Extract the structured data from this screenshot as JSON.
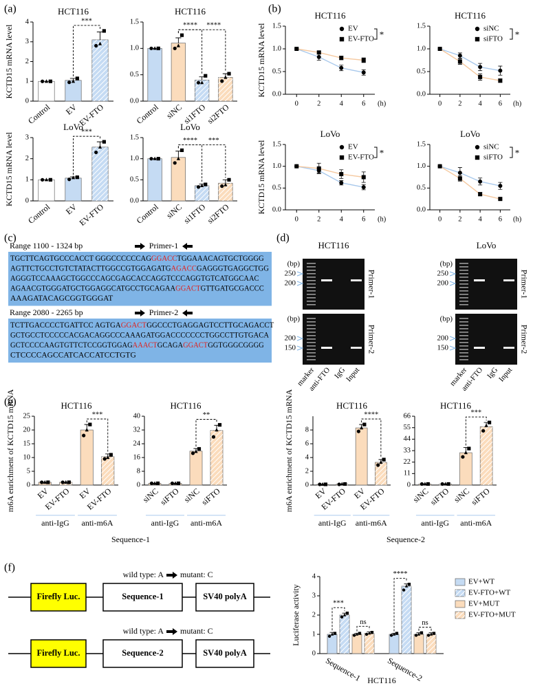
{
  "panel_labels": [
    "(a)",
    "(b)",
    "(c)",
    "(d)",
    "(e)",
    "(f)"
  ],
  "chart_data": [
    {
      "type": "bar",
      "title": "HCT116",
      "ylabel": "KCTD15 mRNA level",
      "categories": [
        "Control",
        "EV",
        "EV-FTO"
      ],
      "values": [
        1,
        1.05,
        3.1
      ],
      "errors": [
        0,
        0.1,
        0.4
      ],
      "points": [
        [
          1,
          1,
          1
        ],
        [
          0.95,
          1.0,
          1.15
        ],
        [
          2.8,
          2.9,
          3.55
        ]
      ],
      "colors": [
        "#ffffff",
        "#c5dbf3",
        "#c5dbf3"
      ],
      "hatched": [
        false,
        false,
        true
      ],
      "ylim": [
        0,
        4
      ],
      "yticks": [
        0,
        1,
        2,
        3,
        4
      ],
      "annotations": [
        {
          "between": [
            1,
            2
          ],
          "label": "***"
        }
      ]
    },
    {
      "type": "bar",
      "title": "HCT116",
      "categories": [
        "Control",
        "siNC",
        "si1FTO",
        "si2FTO"
      ],
      "values": [
        1,
        1.1,
        0.4,
        0.45
      ],
      "errors": [
        0,
        0.1,
        0.06,
        0.07
      ],
      "points": [
        [
          1,
          1,
          1
        ],
        [
          1.0,
          1.05,
          1.25
        ],
        [
          0.35,
          0.35,
          0.48
        ],
        [
          0.38,
          0.45,
          0.52
        ]
      ],
      "colors": [
        "#c5dbf3",
        "#fbdcbc",
        "#c5dbf3",
        "#fbdcbc"
      ],
      "hatched": [
        false,
        false,
        true,
        true
      ],
      "ylim": [
        0,
        1.5
      ],
      "yticks": [
        {
          "value": 0,
          "label": "0.0"
        },
        0.5,
        {
          "value": 1,
          "label": "1.0"
        },
        1.5
      ],
      "annotations": [
        {
          "between": [
            1,
            2
          ],
          "label": "****"
        },
        {
          "between": [
            1,
            3
          ],
          "label": "****"
        }
      ]
    },
    {
      "type": "bar",
      "title": "LoVo",
      "ylabel": "KCTD15 mRNA level",
      "categories": [
        "Control",
        "EV",
        "EV-FTO"
      ],
      "values": [
        1,
        1.08,
        2.55
      ],
      "errors": [
        0,
        0.06,
        0.25
      ],
      "points": [
        [
          1,
          1,
          1
        ],
        [
          1.02,
          1.1,
          1.12
        ],
        [
          2.3,
          2.55,
          2.8
        ]
      ],
      "colors": [
        "#ffffff",
        "#c5dbf3",
        "#c5dbf3"
      ],
      "hatched": [
        false,
        false,
        true
      ],
      "ylim": [
        0,
        3
      ],
      "yticks": [
        0,
        1,
        2,
        3
      ],
      "annotations": [
        {
          "between": [
            1,
            2
          ],
          "label": "***"
        }
      ]
    },
    {
      "type": "bar",
      "title": "LoVo",
      "categories": [
        "Control",
        "siNC",
        "si1FTO",
        "si2FTO"
      ],
      "values": [
        1,
        1.03,
        0.36,
        0.42
      ],
      "errors": [
        0,
        0.15,
        0.04,
        0.08
      ],
      "points": [
        [
          1,
          1,
          1
        ],
        [
          0.9,
          1.0,
          1.2
        ],
        [
          0.33,
          0.36,
          0.39
        ],
        [
          0.35,
          0.38,
          0.5
        ]
      ],
      "colors": [
        "#c5dbf3",
        "#fbdcbc",
        "#c5dbf3",
        "#fbdcbc"
      ],
      "hatched": [
        false,
        false,
        true,
        true
      ],
      "ylim": [
        0,
        1.5
      ],
      "yticks": [
        {
          "value": 0,
          "label": "0.0"
        },
        0.5,
        {
          "value": 1,
          "label": "1.0"
        },
        1.5
      ],
      "annotations": [
        {
          "between": [
            1,
            2
          ],
          "label": "****"
        },
        {
          "between": [
            1,
            3
          ],
          "label": "***"
        }
      ]
    },
    {
      "type": "line",
      "title": "HCT116",
      "ylabel": "KCTD15 mRNA level",
      "xlabel": "(h)",
      "x": [
        0,
        2,
        4,
        6
      ],
      "xlim": [
        -1,
        7
      ],
      "xticks": [
        0,
        2,
        4,
        6
      ],
      "ylim": [
        0,
        1.5
      ],
      "yticks": [
        {
          "value": 0,
          "label": "0.0"
        },
        0.5,
        {
          "value": 1,
          "label": "1.0"
        },
        1.5
      ],
      "legend": "upper right",
      "significance": "*",
      "series": [
        {
          "name": "EV",
          "color": "#a9c9ec",
          "marker": "circle",
          "values": [
            1,
            0.82,
            0.58,
            0.48
          ],
          "errors": [
            0,
            0.07,
            0.06,
            0.06
          ]
        },
        {
          "name": "EV-FTO",
          "color": "#f5c9a0",
          "marker": "square",
          "values": [
            1,
            0.92,
            0.8,
            0.75
          ],
          "errors": [
            0,
            0.03,
            0.04,
            0.05
          ]
        }
      ]
    },
    {
      "type": "line",
      "title": "HCT116",
      "xlabel": "(h)",
      "x": [
        0,
        2,
        4,
        6
      ],
      "xlim": [
        -1,
        7
      ],
      "xticks": [
        0,
        2,
        4,
        6
      ],
      "ylim": [
        0,
        1.5
      ],
      "yticks": [
        {
          "value": 0,
          "label": "0.0"
        },
        0.5,
        {
          "value": 1,
          "label": "1.0"
        },
        1.5
      ],
      "legend": "upper right",
      "significance": "*",
      "series": [
        {
          "name": "siNC",
          "color": "#a9c9ec",
          "marker": "circle",
          "values": [
            1,
            0.85,
            0.6,
            0.52
          ],
          "errors": [
            0,
            0.06,
            0.08,
            0.1
          ]
        },
        {
          "name": "siFTO",
          "color": "#f5c9a0",
          "marker": "square",
          "values": [
            1,
            0.72,
            0.38,
            0.3
          ],
          "errors": [
            0,
            0.06,
            0.07,
            0.04
          ]
        }
      ]
    },
    {
      "type": "line",
      "title": "LoVo",
      "ylabel": "KCTD15 mRNA level",
      "xlabel": "(h)",
      "x": [
        0,
        2,
        4,
        6
      ],
      "xlim": [
        -1,
        7
      ],
      "xticks": [
        0,
        2,
        4,
        6
      ],
      "ylim": [
        0,
        1.5
      ],
      "yticks": [
        {
          "value": 0,
          "label": "0.0"
        },
        0.5,
        {
          "value": 1,
          "label": "1.0"
        },
        1.5
      ],
      "legend": "upper right",
      "significance": "*",
      "series": [
        {
          "name": "EV",
          "color": "#a9c9ec",
          "marker": "circle",
          "values": [
            1,
            0.9,
            0.62,
            0.52
          ],
          "errors": [
            0,
            0.05,
            0.05,
            0.06
          ]
        },
        {
          "name": "EV-FTO",
          "color": "#f5c9a0",
          "marker": "square",
          "values": [
            1,
            0.95,
            0.82,
            0.75
          ],
          "errors": [
            0,
            0.12,
            0.1,
            0.12
          ]
        }
      ]
    },
    {
      "type": "line",
      "title": "LoVo",
      "xlabel": "(h)",
      "x": [
        0,
        2,
        4,
        6
      ],
      "xlim": [
        -1,
        7
      ],
      "xticks": [
        0,
        2,
        4,
        6
      ],
      "ylim": [
        0,
        1.5
      ],
      "yticks": [
        {
          "value": 0,
          "label": "0.0"
        },
        0.5,
        {
          "value": 1,
          "label": "1.0"
        },
        1.5
      ],
      "legend": "upper right",
      "significance": "*",
      "series": [
        {
          "name": "siNC",
          "color": "#a9c9ec",
          "marker": "circle",
          "values": [
            1,
            0.85,
            0.65,
            0.55
          ],
          "errors": [
            0,
            0.12,
            0.08,
            0.08
          ]
        },
        {
          "name": "siFTO",
          "color": "#f5c9a0",
          "marker": "square",
          "values": [
            1,
            0.72,
            0.36,
            0.25
          ],
          "errors": [
            0,
            0.06,
            0.04,
            0.02
          ]
        }
      ]
    },
    {
      "type": "bar",
      "title": "HCT116",
      "ylabel": "m6A enrichment of KCTD15 mRNA",
      "categories": [
        "EV",
        "EV-FTO",
        "EV",
        "EV-FTO"
      ],
      "values": [
        1,
        1,
        20,
        10.3
      ],
      "errors": [
        0,
        0,
        2,
        1
      ],
      "points": [
        [
          1,
          1,
          1
        ],
        [
          1,
          1,
          1
        ],
        [
          18,
          20,
          22
        ],
        [
          9.5,
          10,
          11
        ]
      ],
      "colors": [
        "#fbdcbc",
        "#fbdcbc",
        "#fbdcbc",
        "#fbdcbc"
      ],
      "hatched": [
        false,
        true,
        false,
        true
      ],
      "ylim": [
        0,
        25
      ],
      "yticks": [
        0,
        5,
        10,
        15,
        20,
        25
      ],
      "annotations": [
        {
          "between": [
            2,
            3
          ],
          "label": "***"
        }
      ],
      "groups": [
        {
          "label": "anti-IgG",
          "span": [
            0,
            1
          ]
        },
        {
          "label": "anti-m6A",
          "span": [
            2,
            3
          ]
        }
      ],
      "caption": "Sequence-1"
    },
    {
      "type": "bar",
      "title": "HCT116",
      "categories": [
        "siNC",
        "siFTO",
        "siNC",
        "siFTO"
      ],
      "values": [
        1,
        1,
        19.7,
        31.7
      ],
      "errors": [
        0,
        0,
        1.5,
        3
      ],
      "points": [
        [
          1,
          1,
          1
        ],
        [
          1,
          1,
          1
        ],
        [
          18.5,
          19.5,
          21
        ],
        [
          28,
          32,
          35
        ]
      ],
      "colors": [
        "#fbdcbc",
        "#fbdcbc",
        "#fbdcbc",
        "#fbdcbc"
      ],
      "hatched": [
        false,
        true,
        false,
        true
      ],
      "ylim": [
        0,
        40
      ],
      "yticks": [
        0,
        8,
        16,
        24,
        32,
        40
      ],
      "annotations": [
        {
          "between": [
            2,
            3
          ],
          "label": "**"
        }
      ],
      "groups": [
        {
          "label": "anti-IgG",
          "span": [
            0,
            1
          ]
        },
        {
          "label": "anti-m6A",
          "span": [
            2,
            3
          ]
        }
      ]
    },
    {
      "type": "bar",
      "title": "HCT116",
      "ylabel": "m6A enrichment of KCTD15 mRNA",
      "categories": [
        "EV",
        "EV-FTO",
        "EV",
        "EV-FTO"
      ],
      "values": [
        0.1,
        0.13,
        8.3,
        3.3
      ],
      "errors": [
        0,
        0,
        0.5,
        0.4
      ],
      "points": [
        [
          0.1,
          0.1,
          0.1
        ],
        [
          0.1,
          0.15,
          0.15
        ],
        [
          7.8,
          8.3,
          8.8
        ],
        [
          2.9,
          3.3,
          3.7
        ]
      ],
      "colors": [
        "#fbdcbc",
        "#fbdcbc",
        "#fbdcbc",
        "#fbdcbc"
      ],
      "hatched": [
        false,
        true,
        false,
        true
      ],
      "ylim": [
        0,
        10
      ],
      "yticks": [
        0,
        2,
        4,
        6,
        8
      ],
      "annotations": [
        {
          "between": [
            2,
            3
          ],
          "label": "****"
        }
      ],
      "groups": [
        {
          "label": "anti-IgG",
          "span": [
            0,
            1
          ]
        },
        {
          "label": "anti-m6A",
          "span": [
            2,
            3
          ]
        }
      ],
      "caption": "Sequence-2"
    },
    {
      "type": "bar",
      "title": "HCT116",
      "categories": [
        "siNC",
        "siFTO",
        "siNC",
        "siFTO"
      ],
      "values": [
        1,
        1,
        31,
        56
      ],
      "errors": [
        0,
        0,
        5,
        4
      ],
      "points": [
        [
          1,
          1,
          1
        ],
        [
          1,
          1,
          1
        ],
        [
          27,
          31,
          35
        ],
        [
          52,
          57,
          60
        ]
      ],
      "colors": [
        "#fbdcbc",
        "#fbdcbc",
        "#fbdcbc",
        "#fbdcbc"
      ],
      "hatched": [
        false,
        true,
        false,
        true
      ],
      "ylim": [
        0,
        66
      ],
      "yticks": [
        0,
        11,
        22,
        33,
        44,
        55,
        66
      ],
      "annotations": [
        {
          "between": [
            2,
            3
          ],
          "label": "***"
        }
      ],
      "groups": [
        {
          "label": "anti-IgG",
          "span": [
            0,
            1
          ]
        },
        {
          "label": "anti-m6A",
          "span": [
            2,
            3
          ]
        }
      ]
    },
    {
      "type": "grouped_bar",
      "ylabel": "Luciferase activity",
      "xlabel": "HCT116",
      "categories": [
        "Sequence-1",
        "Sequence-2"
      ],
      "ylim": [
        0,
        4
      ],
      "yticks": [
        0,
        1,
        2,
        3,
        4
      ],
      "legend": "right",
      "series": [
        {
          "name": "EV+WT",
          "color": "#c5dbf3",
          "hatched": false,
          "values": [
            1.0,
            1.0
          ],
          "errors": [
            0.1,
            0.05
          ],
          "points": [
            [
              0.9,
              1.0,
              1.05
            ],
            [
              0.95,
              1.0,
              1.05
            ]
          ]
        },
        {
          "name": "EV-FTO+WT",
          "color": "#c5dbf3",
          "hatched": true,
          "values": [
            2.0,
            3.5
          ],
          "errors": [
            0.1,
            0.12
          ],
          "points": [
            [
              1.9,
              2.0,
              2.1
            ],
            [
              3.3,
              3.5,
              3.6
            ]
          ]
        },
        {
          "name": "EV+MUT",
          "color": "#fbdcbc",
          "hatched": false,
          "values": [
            1.0,
            1.0
          ],
          "errors": [
            0.05,
            0.08
          ],
          "points": [
            [
              0.95,
              1.0,
              1.05
            ],
            [
              0.95,
              1.0,
              1.08
            ]
          ]
        },
        {
          "name": "EV-FTO+MUT",
          "color": "#fbdcbc",
          "hatched": true,
          "values": [
            1.05,
            1.0
          ],
          "errors": [
            0.08,
            0.08
          ],
          "points": [
            [
              1.0,
              1.05,
              1.1
            ],
            [
              0.95,
              1.0,
              1.05
            ]
          ]
        }
      ],
      "annotations": [
        {
          "category": 0,
          "between": [
            0,
            1
          ],
          "label": "***"
        },
        {
          "category": 0,
          "between": [
            2,
            3
          ],
          "label": "ns"
        },
        {
          "category": 1,
          "between": [
            0,
            1
          ],
          "label": "****"
        },
        {
          "category": 1,
          "between": [
            2,
            3
          ],
          "label": "ns"
        }
      ]
    }
  ],
  "sequences": [
    {
      "range": "Range 1100 - 1324 bp",
      "primer": "Primer-1",
      "lines": [
        [
          "TGCTTCAGTGCCCACCT GGGCCCCCCAG",
          "GGACC",
          "TGGAAACAGTGCTGGGG"
        ],
        [
          "AGTTCTGCCTGTCTATACTTGGCCGTGGAGATG",
          "AGACC",
          "GAGGGTGAGGCTGG"
        ],
        [
          "AGGGTCCAAAGCTGGCCCAGCGAGCACCAGGTCCCAGGTGTCATGGCAAC"
        ],
        [
          "AGAACGTGGGATGCTGGAGGCATGCCTGCAGAA",
          "GGACT",
          "GTTGATGCGACCC"
        ],
        [
          "AAAGATACAGCGGTGGGAT"
        ]
      ]
    },
    {
      "range": "Range 2080 - 2265 bp",
      "primer": "Primer-2",
      "lines": [
        [
          "TCTTGACCCCTGATTCC AGTGA",
          "GGACT",
          "GGCCCTGAGGAGTCCTTGCAGACCT"
        ],
        [
          "GCTGCCTCCCCCACGACAGGCCCAAAGATGGACCCCCCCTGGCCTTGTGACA"
        ],
        [
          "GCTCCCCAAGTGTTCTCCGGTGGAG",
          "AAACT",
          "GCAGA",
          "GGACT",
          "GGTGGGCGGGG"
        ],
        [
          "CTCCCCAGCCATCACCATCCTGTG"
        ]
      ]
    }
  ],
  "gels": {
    "titles": [
      "HCT116",
      "LoVo"
    ],
    "size_unit": "(bp)",
    "rows": [
      {
        "primer": "Primer-1",
        "sizes": [
          250,
          200
        ]
      },
      {
        "primer": "Primer-2",
        "sizes": [
          200,
          150
        ]
      }
    ],
    "lanes": [
      "marker",
      "anti-FTO",
      "IgG",
      "Input"
    ]
  },
  "constructs": [
    {
      "wild_type": "wild type: A",
      "mutant": "mutant: C",
      "elements": [
        "Firefly Luc.",
        "Sequence-1",
        "SV40 polyA"
      ]
    },
    {
      "wild_type": "wild type: A",
      "mutant": "mutant: C",
      "elements": [
        "Firefly Luc.",
        "Sequence-2",
        "SV40 polyA"
      ]
    }
  ]
}
